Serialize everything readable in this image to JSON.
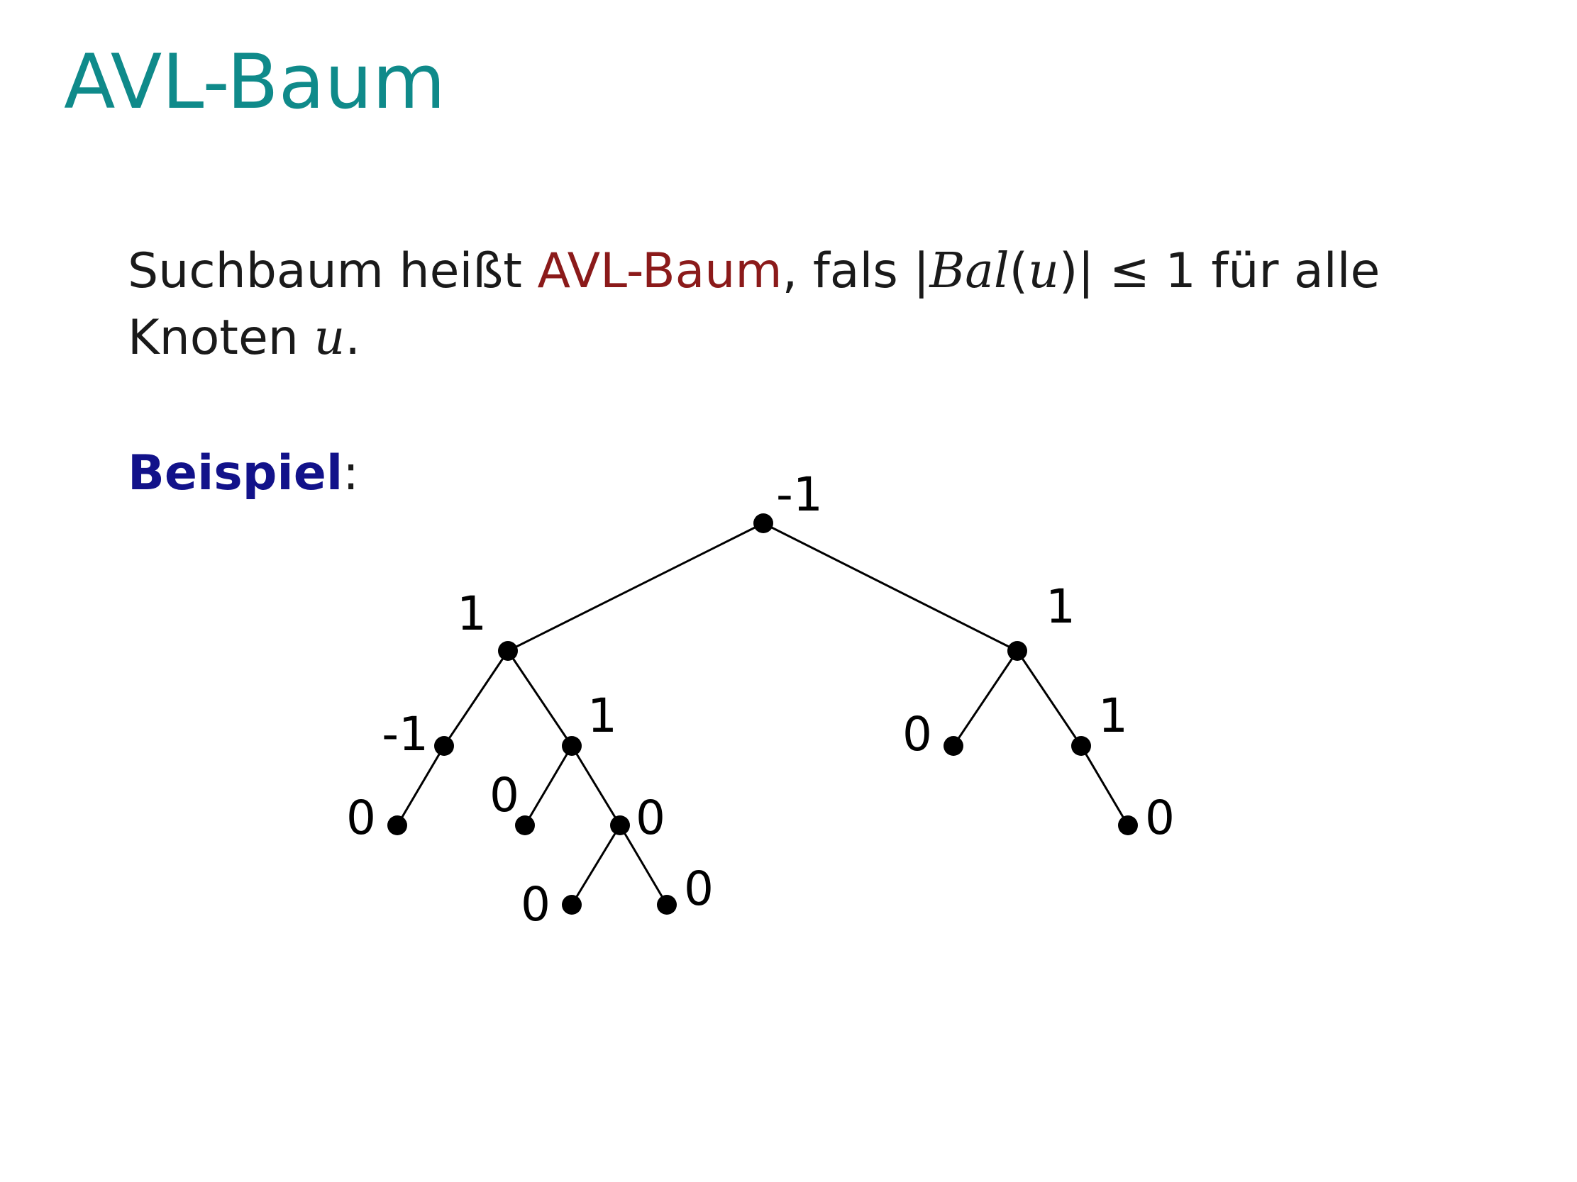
{
  "slide": {
    "title": "AVL-Baum",
    "definition": {
      "before_term": "Suchbaum heißt ",
      "term": "AVL-Baum",
      "after_term": ", fals |",
      "math_bal": "Bal",
      "paren_open": "(",
      "math_u": "u",
      "paren_close": ")| ≤ 1 für alle",
      "line2_text": "Knoten ",
      "line2_var": "u",
      "line2_end": "."
    },
    "example": {
      "label": "Beispiel",
      "colon": ":"
    }
  },
  "tree": {
    "nodes": [
      {
        "id": "root",
        "balance": "-1"
      },
      {
        "id": "L",
        "balance": "1"
      },
      {
        "id": "R",
        "balance": "1"
      },
      {
        "id": "LL",
        "balance": "-1"
      },
      {
        "id": "LR",
        "balance": "1"
      },
      {
        "id": "RL",
        "balance": "0"
      },
      {
        "id": "RR",
        "balance": "1"
      },
      {
        "id": "LLL",
        "balance": "0"
      },
      {
        "id": "LRL",
        "balance": "0"
      },
      {
        "id": "LRR",
        "balance": "0"
      },
      {
        "id": "RRR",
        "balance": "0"
      },
      {
        "id": "LRRL",
        "balance": "0"
      },
      {
        "id": "LRRR",
        "balance": "0"
      }
    ],
    "edges": [
      [
        "root",
        "L"
      ],
      [
        "root",
        "R"
      ],
      [
        "L",
        "LL"
      ],
      [
        "L",
        "LR"
      ],
      [
        "R",
        "RL"
      ],
      [
        "R",
        "RR"
      ],
      [
        "LL",
        "LLL"
      ],
      [
        "LR",
        "LRL"
      ],
      [
        "LR",
        "LRR"
      ],
      [
        "RR",
        "RRR"
      ],
      [
        "LRR",
        "LRRL"
      ],
      [
        "LRR",
        "LRRR"
      ]
    ]
  }
}
